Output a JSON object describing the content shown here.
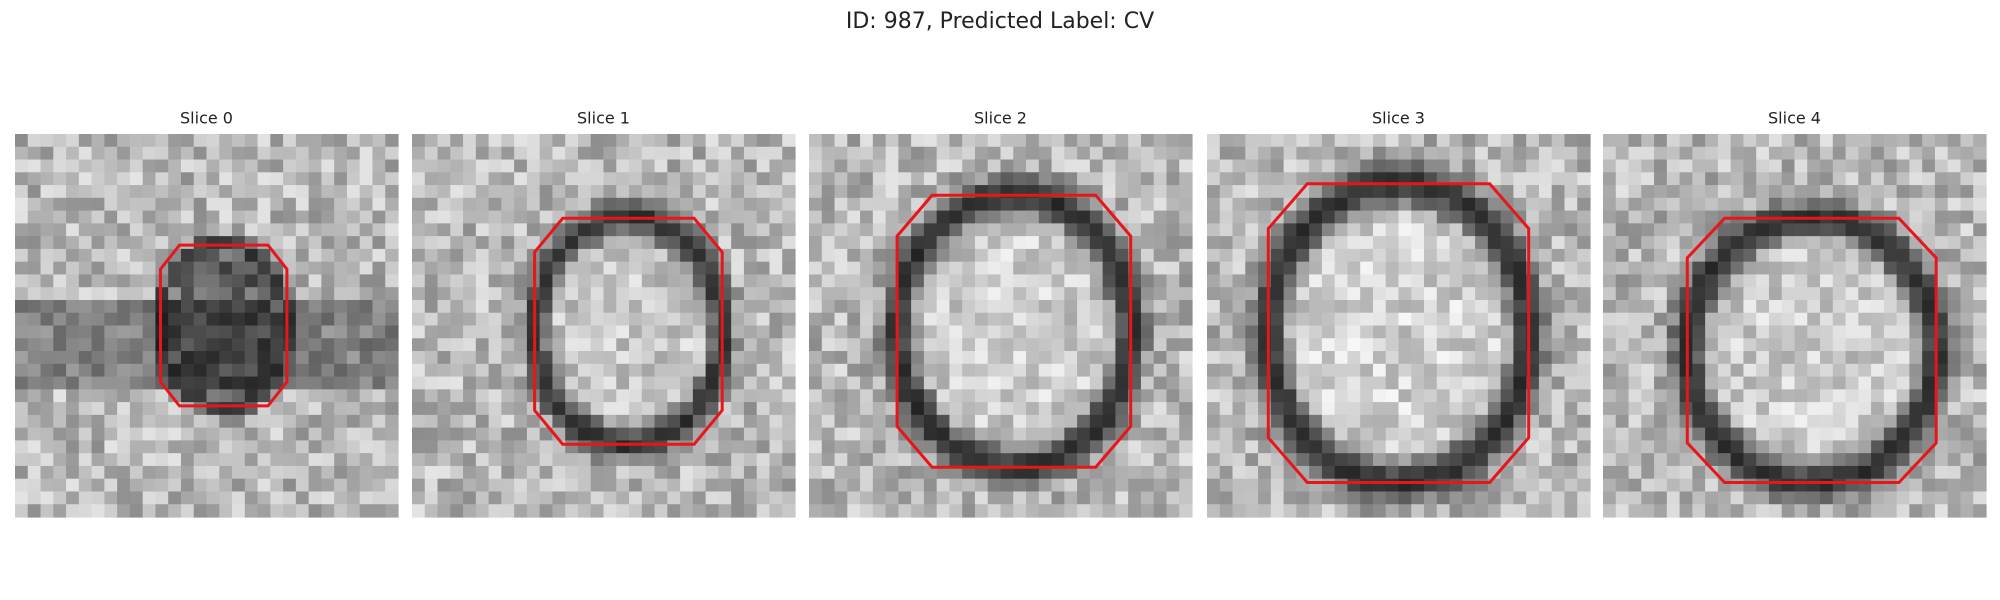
{
  "figure": {
    "title": "ID: 987, Predicted Label: CV",
    "panels": [
      {
        "title": "Slice 0"
      },
      {
        "title": "Slice 1"
      },
      {
        "title": "Slice 2"
      },
      {
        "title": "Slice 3"
      },
      {
        "title": "Slice 4"
      }
    ]
  }
}
